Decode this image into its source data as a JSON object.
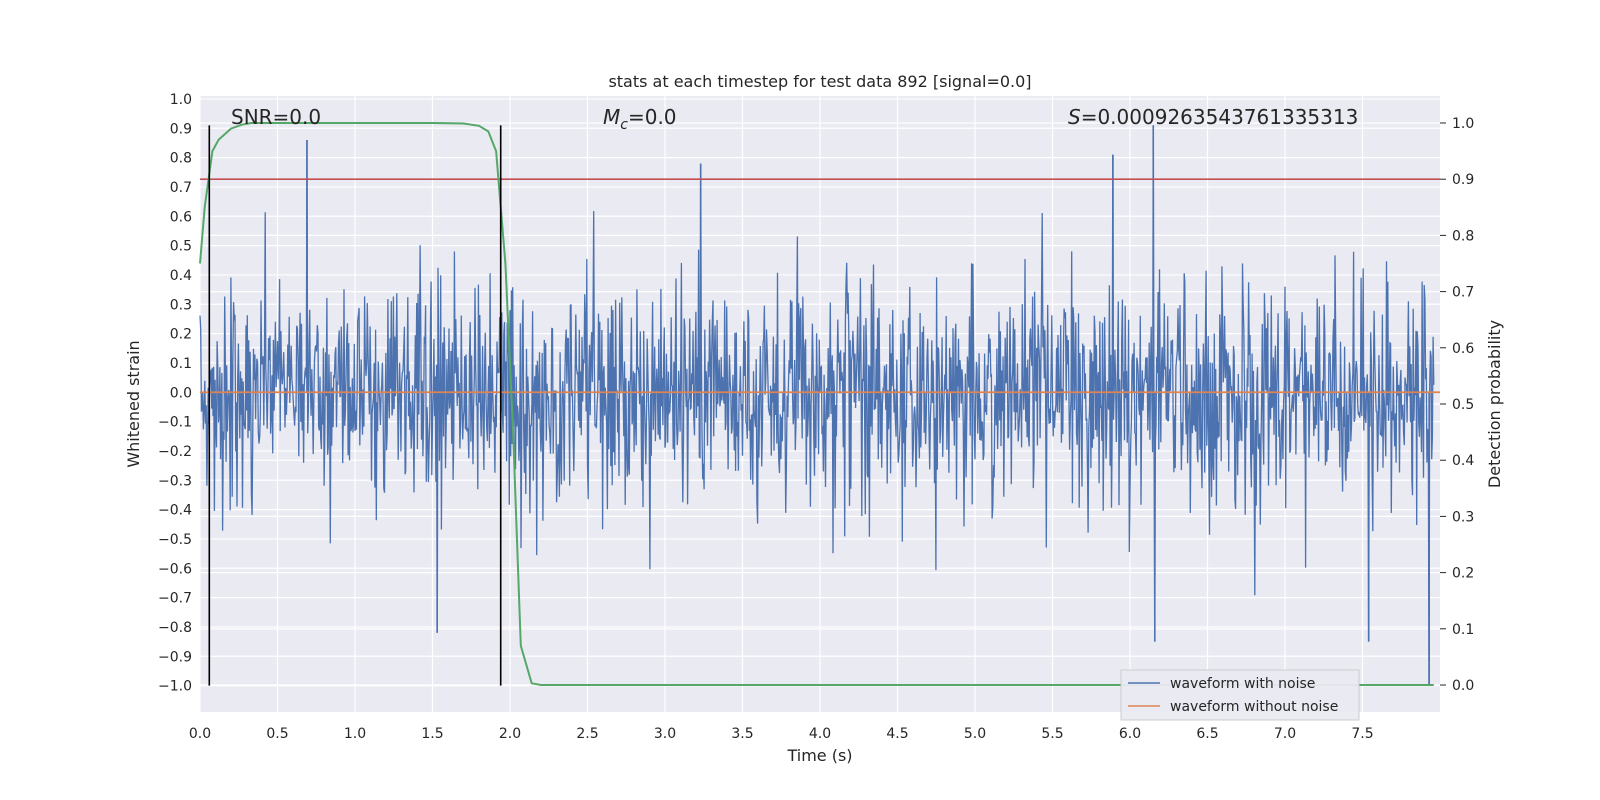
{
  "chart_data": {
    "type": "line",
    "title": "stats at each timestep for test data 892 [signal=0.0]",
    "xlabel": "Time (s)",
    "ylabel": "Whitened strain",
    "y2label": "Detection probability",
    "xlim": [
      0.0,
      8.0
    ],
    "ylim": [
      -1.09,
      1.01
    ],
    "y2lim": [
      -0.048,
      1.048
    ],
    "xticks": [
      "0.0",
      "0.5",
      "1.0",
      "1.5",
      "2.0",
      "2.5",
      "3.0",
      "3.5",
      "4.0",
      "4.5",
      "5.0",
      "5.5",
      "6.0",
      "6.5",
      "7.0",
      "7.5"
    ],
    "xtick_values": [
      0.0,
      0.5,
      1.0,
      1.5,
      2.0,
      2.5,
      3.0,
      3.5,
      4.0,
      4.5,
      5.0,
      5.5,
      6.0,
      6.5,
      7.0,
      7.5
    ],
    "yticks": [
      "1.0",
      "0.9",
      "0.8",
      "0.7",
      "0.6",
      "0.5",
      "0.4",
      "0.3",
      "0.2",
      "0.1",
      "0.0",
      "−0.1",
      "−0.2",
      "−0.3",
      "−0.4",
      "−0.5",
      "−0.6",
      "−0.7",
      "−0.8",
      "−0.9",
      "−1.0"
    ],
    "ytick_values": [
      1.0,
      0.9,
      0.8,
      0.7,
      0.6,
      0.5,
      0.4,
      0.3,
      0.2,
      0.1,
      0.0,
      -0.1,
      -0.2,
      -0.3,
      -0.4,
      -0.5,
      -0.6,
      -0.7,
      -0.8,
      -0.9,
      -1.0
    ],
    "y2ticks": [
      "1.0",
      "0.9",
      "0.8",
      "0.7",
      "0.6",
      "0.5",
      "0.4",
      "0.3",
      "0.2",
      "0.1",
      "0.0"
    ],
    "y2tick_values": [
      1.0,
      0.9,
      0.8,
      0.7,
      0.6,
      0.5,
      0.4,
      0.3,
      0.2,
      0.1,
      0.0
    ],
    "annotations": {
      "snr": "SNR=0.0",
      "mc_symbol": "M",
      "mc_sub": "c",
      "mc_value": "=0.0",
      "s_symbol": "S",
      "s_value": "=0.0009263543761335313"
    },
    "series": [
      {
        "name": "waveform with noise",
        "color": "#4c72b0",
        "description": "dense noisy whitened strain trace, roughly within -0.85..0.9",
        "noise_seed": 892,
        "samples": 1800,
        "typical_amplitude": 0.3,
        "spikes": [
          {
            "x": 0.69,
            "y": 0.86
          },
          {
            "x": 1.53,
            "y": -0.82
          },
          {
            "x": 3.23,
            "y": 0.78
          },
          {
            "x": 5.89,
            "y": 0.81
          },
          {
            "x": 6.15,
            "y": 0.91
          },
          {
            "x": 6.16,
            "y": -0.85
          },
          {
            "x": 7.54,
            "y": -0.85
          },
          {
            "x": 7.93,
            "y": -1.0
          }
        ]
      },
      {
        "name": "waveform without noise",
        "color": "#dd8452",
        "x": [
          0.0,
          8.0
        ],
        "y": [
          0.0,
          0.0
        ]
      }
    ],
    "detection_probability": {
      "color": "#55a868",
      "x": [
        0.0,
        0.03,
        0.08,
        0.12,
        0.2,
        0.27,
        0.33,
        0.4,
        0.6,
        1.0,
        1.5,
        1.7,
        1.8,
        1.86,
        1.91,
        1.97,
        2.02,
        2.07,
        2.14,
        2.2,
        3.0,
        5.0,
        7.0,
        7.96
      ],
      "y": [
        0.75,
        0.85,
        0.95,
        0.97,
        0.99,
        0.997,
        1.0,
        1.0,
        1.0,
        1.0,
        1.0,
        0.999,
        0.995,
        0.985,
        0.95,
        0.75,
        0.45,
        0.07,
        0.003,
        0.0,
        0.0,
        0.0,
        0.0,
        0.0
      ]
    },
    "threshold": {
      "color": "#c44e52",
      "y2": 0.9
    },
    "vertical_markers": [
      {
        "x": 0.06,
        "y_from": -1.0,
        "y_to": 0.91
      },
      {
        "x": 1.94,
        "y_from": -1.0,
        "y_to": 0.91
      }
    ],
    "legend": {
      "location": "lower-right",
      "entries": [
        {
          "label": "waveform with noise",
          "color": "#4c72b0"
        },
        {
          "label": "waveform without noise",
          "color": "#dd8452"
        }
      ]
    },
    "grid": true,
    "background": "#eaeaf2"
  }
}
